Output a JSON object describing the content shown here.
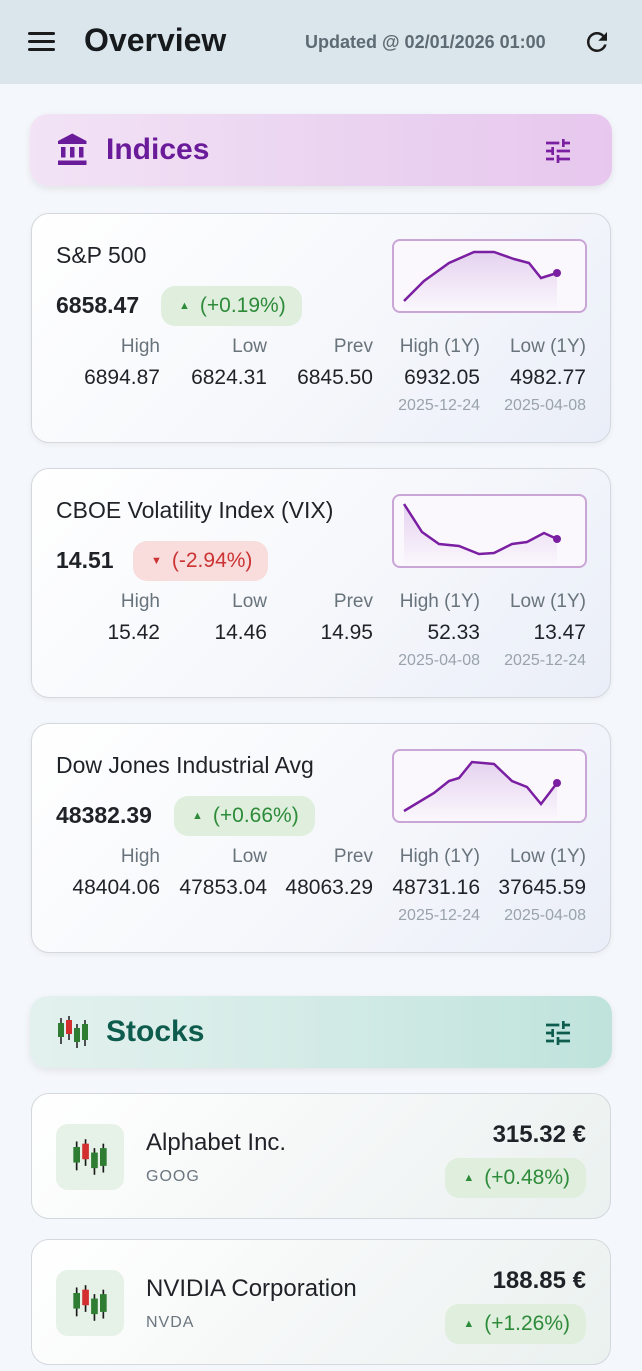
{
  "header": {
    "menu_icon": "hamburger-menu-icon",
    "title": "Overview",
    "updated": "Updated @ 02/01/2026 01:00",
    "refresh_icon": "refresh-icon"
  },
  "colors": {
    "up": "#2e8b3a",
    "down": "#cc3333",
    "indices_accent": "#6a1b9a",
    "stocks_accent": "#0d5c4d",
    "sparkline": "#7b1fa2"
  },
  "indices_section": {
    "title": "Indices",
    "icon": "bank-icon",
    "filter_icon": "tune-icon"
  },
  "stat_labels": {
    "high": "High",
    "low": "Low",
    "prev": "Prev",
    "high_1y": "High (1Y)",
    "low_1y": "Low (1Y)"
  },
  "indices": [
    {
      "name": "S&P 500",
      "price": "6858.47",
      "change": "(+0.19%)",
      "direction": "up",
      "high": "6894.87",
      "low": "6824.31",
      "prev": "6845.50",
      "high_1y": "6932.05",
      "high_1y_date": "2025-12-24",
      "low_1y": "4982.77",
      "low_1y_date": "2025-04-08"
    },
    {
      "name": "CBOE Volatility Index (VIX)",
      "price": "14.51",
      "change": "(-2.94%)",
      "direction": "down",
      "high": "15.42",
      "low": "14.46",
      "prev": "14.95",
      "high_1y": "52.33",
      "high_1y_date": "2025-04-08",
      "low_1y": "13.47",
      "low_1y_date": "2025-12-24"
    },
    {
      "name": "Dow Jones Industrial Avg",
      "price": "48382.39",
      "change": "(+0.66%)",
      "direction": "up",
      "high": "48404.06",
      "low": "47853.04",
      "prev": "48063.29",
      "high_1y": "48731.16",
      "high_1y_date": "2025-12-24",
      "low_1y": "37645.59",
      "low_1y_date": "2025-04-08"
    }
  ],
  "stocks_section": {
    "title": "Stocks",
    "icon": "candlestick-chart-icon",
    "filter_icon": "tune-icon"
  },
  "stocks": [
    {
      "name": "Alphabet Inc.",
      "ticker": "GOOG",
      "price": "315.32 €",
      "change": "(+0.48%)",
      "direction": "up"
    },
    {
      "name": "NVIDIA Corporation",
      "ticker": "NVDA",
      "price": "188.85 €",
      "change": "(+1.26%)",
      "direction": "up"
    }
  ]
}
